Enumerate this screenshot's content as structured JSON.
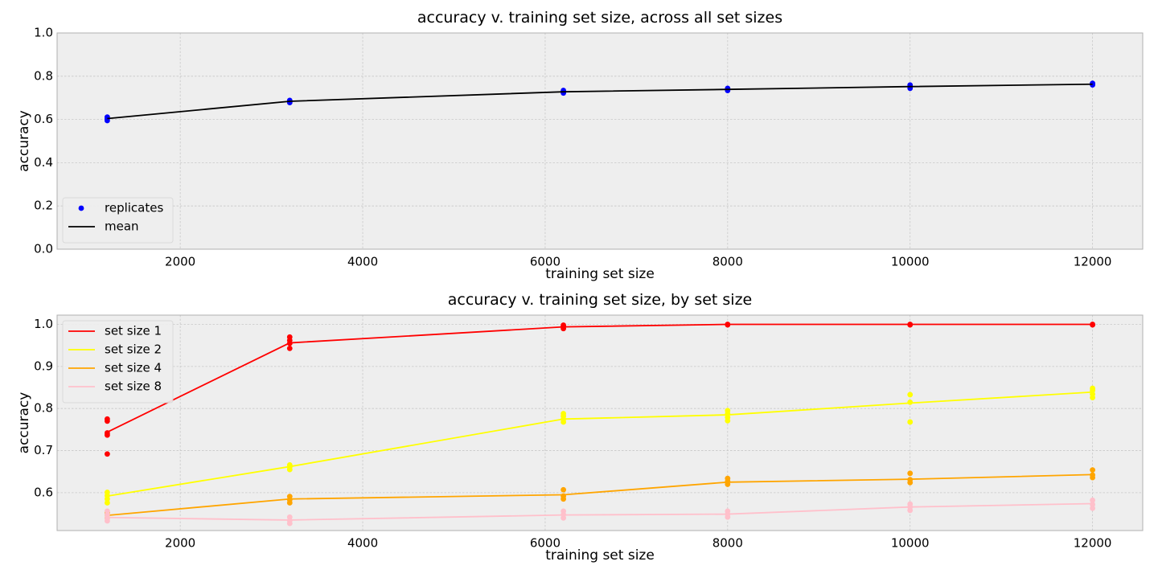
{
  "chart_data": [
    {
      "type": "scatter",
      "title": "accuracy v. training set size, across all set sizes",
      "xlabel": "training set size",
      "ylabel": "accuracy",
      "xlim": [
        650,
        12550
      ],
      "ylim": [
        0.0,
        1.0
      ],
      "xticks": [
        2000,
        4000,
        6000,
        8000,
        10000,
        12000
      ],
      "yticks": [
        0.0,
        0.2,
        0.4,
        0.6,
        0.8,
        1.0
      ],
      "ytick_decimals": 1,
      "grid": true,
      "legend_position": "lower-left",
      "x": [
        1200,
        3200,
        6200,
        8000,
        10000,
        12000
      ],
      "series": [
        {
          "name": "replicates",
          "kind": "points",
          "color": "#0000ff",
          "points": [
            [
              1200,
              0.595
            ],
            [
              1200,
              0.603
            ],
            [
              1200,
              0.611
            ],
            [
              3200,
              0.678
            ],
            [
              3200,
              0.683
            ],
            [
              3200,
              0.688
            ],
            [
              6200,
              0.722
            ],
            [
              6200,
              0.728
            ],
            [
              6200,
              0.734
            ],
            [
              8000,
              0.734
            ],
            [
              8000,
              0.74
            ],
            [
              8000,
              0.744
            ],
            [
              10000,
              0.744
            ],
            [
              10000,
              0.752
            ],
            [
              10000,
              0.759
            ],
            [
              12000,
              0.76
            ],
            [
              12000,
              0.763
            ],
            [
              12000,
              0.767
            ]
          ]
        },
        {
          "name": "mean",
          "kind": "line",
          "color": "#000000",
          "values": [
            0.604,
            0.684,
            0.728,
            0.739,
            0.752,
            0.763
          ]
        }
      ]
    },
    {
      "type": "line",
      "title": "accuracy v. training set size, by set size",
      "xlabel": "training set size",
      "ylabel": "accuracy",
      "xlim": [
        650,
        12550
      ],
      "ylim": [
        0.51,
        1.022
      ],
      "xticks": [
        2000,
        4000,
        6000,
        8000,
        10000,
        12000
      ],
      "yticks": [
        0.6,
        0.7,
        0.8,
        0.9,
        1.0
      ],
      "ytick_decimals": 1,
      "grid": true,
      "legend_position": "upper-left",
      "x": [
        1200,
        3200,
        6200,
        8000,
        10000,
        12000
      ],
      "series": [
        {
          "name": "set size 1",
          "color": "#ff0000",
          "values": [
            0.744,
            0.956,
            0.994,
            1.0,
            1.0,
            1.0
          ],
          "points": [
            [
              1200,
              0.692
            ],
            [
              1200,
              0.737
            ],
            [
              1200,
              0.742
            ],
            [
              1200,
              0.77
            ],
            [
              1200,
              0.775
            ],
            [
              3200,
              0.943
            ],
            [
              3200,
              0.955
            ],
            [
              3200,
              0.962
            ],
            [
              3200,
              0.97
            ],
            [
              6200,
              0.99
            ],
            [
              6200,
              0.995
            ],
            [
              6200,
              0.998
            ],
            [
              8000,
              0.999
            ],
            [
              8000,
              1.0
            ],
            [
              10000,
              0.999
            ],
            [
              10000,
              1.0
            ],
            [
              12000,
              0.999
            ],
            [
              12000,
              1.0
            ]
          ]
        },
        {
          "name": "set size 2",
          "color": "#ffff00",
          "values": [
            0.592,
            0.662,
            0.775,
            0.785,
            0.813,
            0.839
          ],
          "points": [
            [
              1200,
              0.576
            ],
            [
              1200,
              0.585
            ],
            [
              1200,
              0.593
            ],
            [
              1200,
              0.601
            ],
            [
              3200,
              0.655
            ],
            [
              3200,
              0.661
            ],
            [
              3200,
              0.666
            ],
            [
              6200,
              0.768
            ],
            [
              6200,
              0.775
            ],
            [
              6200,
              0.782
            ],
            [
              6200,
              0.788
            ],
            [
              8000,
              0.771
            ],
            [
              8000,
              0.779
            ],
            [
              8000,
              0.788
            ],
            [
              8000,
              0.795
            ],
            [
              10000,
              0.768
            ],
            [
              10000,
              0.815
            ],
            [
              10000,
              0.833
            ],
            [
              12000,
              0.826
            ],
            [
              12000,
              0.834
            ],
            [
              12000,
              0.843
            ],
            [
              12000,
              0.848
            ]
          ]
        },
        {
          "name": "set size 4",
          "color": "#ffa500",
          "values": [
            0.546,
            0.585,
            0.595,
            0.625,
            0.632,
            0.643
          ],
          "points": [
            [
              1200,
              0.54
            ],
            [
              1200,
              0.548
            ],
            [
              1200,
              0.553
            ],
            [
              3200,
              0.576
            ],
            [
              3200,
              0.583
            ],
            [
              3200,
              0.591
            ],
            [
              6200,
              0.585
            ],
            [
              6200,
              0.592
            ],
            [
              6200,
              0.607
            ],
            [
              8000,
              0.62
            ],
            [
              8000,
              0.627
            ],
            [
              8000,
              0.634
            ],
            [
              10000,
              0.624
            ],
            [
              10000,
              0.631
            ],
            [
              10000,
              0.646
            ],
            [
              12000,
              0.636
            ],
            [
              12000,
              0.642
            ],
            [
              12000,
              0.654
            ]
          ]
        },
        {
          "name": "set size 8",
          "color": "#ffc0cb",
          "values": [
            0.541,
            0.535,
            0.547,
            0.549,
            0.566,
            0.574
          ],
          "points": [
            [
              1200,
              0.533
            ],
            [
              1200,
              0.54
            ],
            [
              1200,
              0.548
            ],
            [
              1200,
              0.556
            ],
            [
              3200,
              0.527
            ],
            [
              3200,
              0.534
            ],
            [
              3200,
              0.542
            ],
            [
              6200,
              0.54
            ],
            [
              6200,
              0.548
            ],
            [
              6200,
              0.556
            ],
            [
              8000,
              0.542
            ],
            [
              8000,
              0.549
            ],
            [
              8000,
              0.556
            ],
            [
              10000,
              0.558
            ],
            [
              10000,
              0.566
            ],
            [
              10000,
              0.573
            ],
            [
              12000,
              0.563
            ],
            [
              12000,
              0.572
            ],
            [
              12000,
              0.582
            ]
          ]
        }
      ]
    }
  ]
}
